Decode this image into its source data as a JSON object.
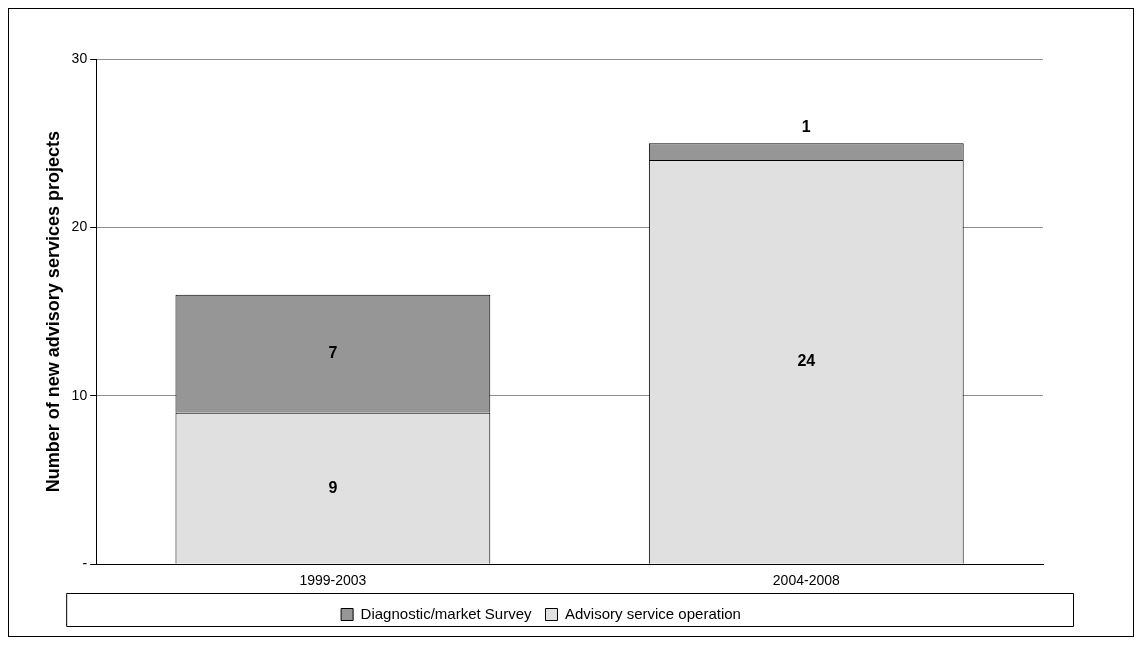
{
  "chart_data": {
    "type": "bar",
    "stacked": true,
    "ylabel": "Number of new advisory services projects",
    "categories": [
      "1999-2003",
      "2004-2008"
    ],
    "series": [
      {
        "name": "Advisory service operation",
        "color": "#e0e0e0",
        "values": [
          9,
          24
        ]
      },
      {
        "name": "Diagnostic/market Survey",
        "color": "#969696",
        "values": [
          7,
          1
        ]
      }
    ],
    "ylim": [
      0,
      30
    ],
    "yticks": [
      {
        "value": 0,
        "label": "-"
      },
      10,
      20,
      30
    ],
    "grid": "y",
    "legend": "bottom",
    "data_labels": true
  }
}
